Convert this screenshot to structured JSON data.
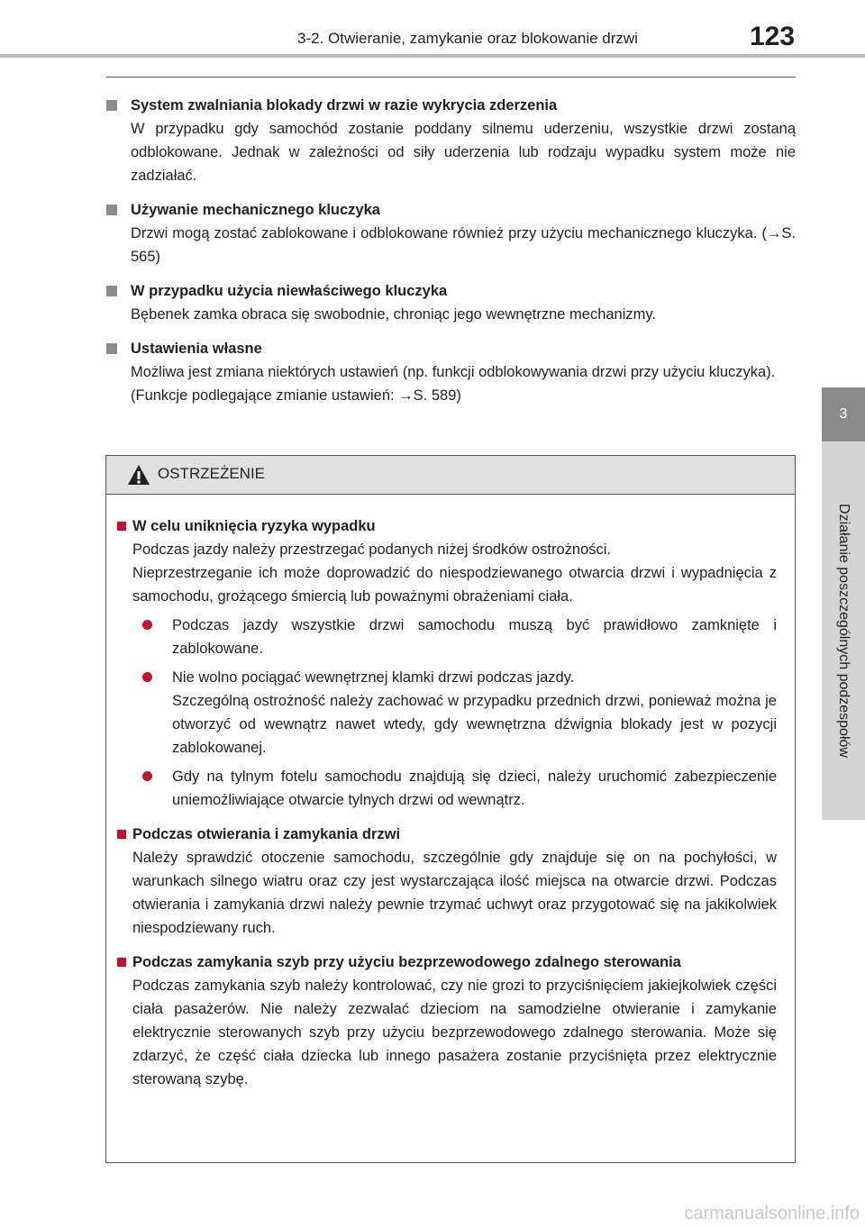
{
  "header": {
    "section_title": "3-2. Otwieranie, zamykanie oraz blokowanie drzwi",
    "page_number": "123"
  },
  "side_tab": {
    "chapter_number": "3",
    "chapter_title": "Działanie poszczególnych podzespołów"
  },
  "sections": [
    {
      "heading": "System zwalniania blokady drzwi w razie wykrycia zderzenia",
      "paragraphs": [
        "W przypadku gdy samochód zostanie poddany silnemu uderzeniu, wszystkie drzwi zostaną odblokowane. Jednak w zależności od siły uderzenia lub rodzaju wypadku system może nie zadziałać."
      ]
    },
    {
      "heading": "Używanie mechanicznego kluczyka",
      "paragraphs": [
        "Drzwi mogą zostać zablokowane i odblokowane również przy użyciu mechanicznego kluczyka. (→S. 565)"
      ]
    },
    {
      "heading": "W przypadku użycia niewłaściwego kluczyka",
      "paragraphs": [
        "Bębenek zamka obraca się swobodnie, chroniąc jego wewnętrzne mechanizmy."
      ]
    },
    {
      "heading": "Ustawienia własne",
      "paragraphs": [
        "Możliwa jest zmiana niektórych ustawień (np. funkcji odblokowywania drzwi przy użyciu kluczyka).",
        "(Funkcje podlegające zmianie ustawień: →S. 589)"
      ]
    }
  ],
  "warning": {
    "title": "OSTRZEŻENIE",
    "sections": [
      {
        "heading": "W celu uniknięcia ryzyka wypadku",
        "paragraphs": [
          "Podczas jazdy należy przestrzegać podanych niżej środków ostrożności.",
          "Nieprzestrzeganie ich może doprowadzić do niespodziewanego otwarcia drzwi i wypadnięcia z samochodu, grożącego śmiercią lub poważnymi obrażeniami ciała."
        ],
        "bullets": [
          [
            "Podczas jazdy wszystkie drzwi samochodu muszą być prawidłowo zamknięte i zablokowane."
          ],
          [
            "Nie wolno pociągać wewnętrznej klamki drzwi podczas jazdy.",
            "Szczególną ostrożność należy zachować w przypadku przednich drzwi, ponieważ można je otworzyć od wewnątrz nawet wtedy, gdy wewnętrzna dźwignia blokady jest w pozycji zablokowanej."
          ],
          [
            "Gdy na tylnym fotelu samochodu znajdują się dzieci, należy uruchomić zabezpieczenie uniemożliwiające otwarcie tylnych drzwi od wewnątrz."
          ]
        ]
      },
      {
        "heading": "Podczas otwierania i zamykania drzwi",
        "paragraphs": [
          "Należy sprawdzić otoczenie samochodu, szczególnie gdy znajduje się on na pochyłości, w warunkach silnego wiatru oraz czy jest wystarczająca ilość miejsca na otwarcie drzwi. Podczas otwierania i zamykania drzwi należy pewnie trzymać uchwyt oraz przygotować się na jakikolwiek niespodziewany ruch."
        ]
      },
      {
        "heading": "Podczas zamykania szyb przy użyciu bezprzewodowego zdalnego sterowania",
        "paragraphs": [
          "Podczas zamykania szyb należy kontrolować, czy nie grozi to przyciśnięciem jakiejkolwiek części ciała pasażerów. Nie należy zezwalać dzieciom na samodzielne otwieranie i zamykanie elektrycznie sterowanych szyb przy użyciu bezprzewodowego zdalnego sterowania. Może się zdarzyć, że część ciała dziecka lub innego pasażera zostanie przyciśnięta przez elektrycznie sterowaną szybę."
        ]
      }
    ]
  },
  "watermark": "carmanualsonline.info"
}
